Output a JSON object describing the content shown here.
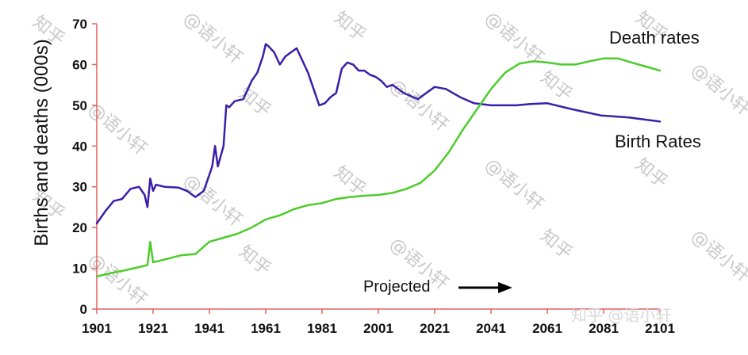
{
  "chart_data": {
    "type": "line",
    "title": "",
    "xlabel": "",
    "ylabel": "Births and deaths (000s)",
    "xlim": [
      1901,
      2101
    ],
    "ylim": [
      0,
      70
    ],
    "x_ticks": [
      "1901",
      "1921",
      "1941",
      "1961",
      "1981",
      "2001",
      "2021",
      "2041",
      "2061",
      "2081",
      "2101"
    ],
    "y_ticks": [
      "0",
      "10",
      "20",
      "30",
      "40",
      "50",
      "60",
      "70"
    ],
    "grid": false,
    "axis_color": "#e06060",
    "series": [
      {
        "name": "Birth Rates",
        "color": "#3a1fa8",
        "x": [
          1901,
          1904,
          1907,
          1910,
          1913,
          1916,
          1918,
          1919,
          1920,
          1921,
          1922,
          1925,
          1930,
          1933,
          1936,
          1939,
          1941,
          1942,
          1943,
          1944,
          1946,
          1947,
          1948,
          1950,
          1953,
          1956,
          1958,
          1960,
          1961,
          1962,
          1964,
          1966,
          1968,
          1970,
          1972,
          1974,
          1976,
          1978,
          1980,
          1982,
          1984,
          1986,
          1988,
          1990,
          1992,
          1994,
          1996,
          1998,
          2000,
          2002,
          2004,
          2006,
          2010,
          2015,
          2021,
          2025,
          2030,
          2035,
          2041,
          2050,
          2055,
          2061,
          2070,
          2080,
          2090,
          2101
        ],
        "values": [
          21,
          24,
          26.5,
          27,
          29.5,
          30,
          28,
          25,
          32,
          29,
          30.5,
          30,
          29.8,
          29,
          27.5,
          29,
          33,
          35,
          40,
          35,
          40,
          50,
          49.5,
          51,
          51.5,
          56,
          58,
          62,
          65,
          64.5,
          63,
          60,
          62,
          63,
          64,
          61,
          58,
          54,
          50,
          50.5,
          52,
          53,
          59,
          60.5,
          60,
          58.5,
          58.5,
          57.5,
          57,
          56,
          54.5,
          55,
          53,
          51.5,
          54.5,
          54,
          52,
          50.5,
          50,
          50,
          50.3,
          50.5,
          49,
          47.5,
          47,
          46
        ]
      },
      {
        "name": "Death rates",
        "color": "#4ccc2a",
        "x": [
          1901,
          1906,
          1911,
          1916,
          1919,
          1920,
          1921,
          1923,
          1926,
          1931,
          1936,
          1941,
          1946,
          1951,
          1956,
          1961,
          1966,
          1971,
          1976,
          1981,
          1986,
          1991,
          1996,
          2001,
          2006,
          2011,
          2016,
          2021,
          2026,
          2031,
          2036,
          2041,
          2046,
          2051,
          2056,
          2061,
          2066,
          2071,
          2076,
          2081,
          2086,
          2091,
          2096,
          2101
        ],
        "values": [
          8,
          8.8,
          9.5,
          10.3,
          10.8,
          16.5,
          11.5,
          11.8,
          12.3,
          13.2,
          13.5,
          16.5,
          17.5,
          18.5,
          20,
          22,
          23,
          24.5,
          25.5,
          26,
          27,
          27.5,
          27.8,
          28,
          28.5,
          29.5,
          31,
          34,
          38.5,
          44,
          49,
          54,
          58,
          60.2,
          60.8,
          60.5,
          60,
          60,
          60.8,
          61.5,
          61.5,
          60.5,
          59.5,
          58.5
        ]
      }
    ],
    "annotations": {
      "projected": "Projected"
    },
    "watermarks": [
      "知乎",
      "@语小轩",
      "知乎 @语小轩"
    ]
  }
}
